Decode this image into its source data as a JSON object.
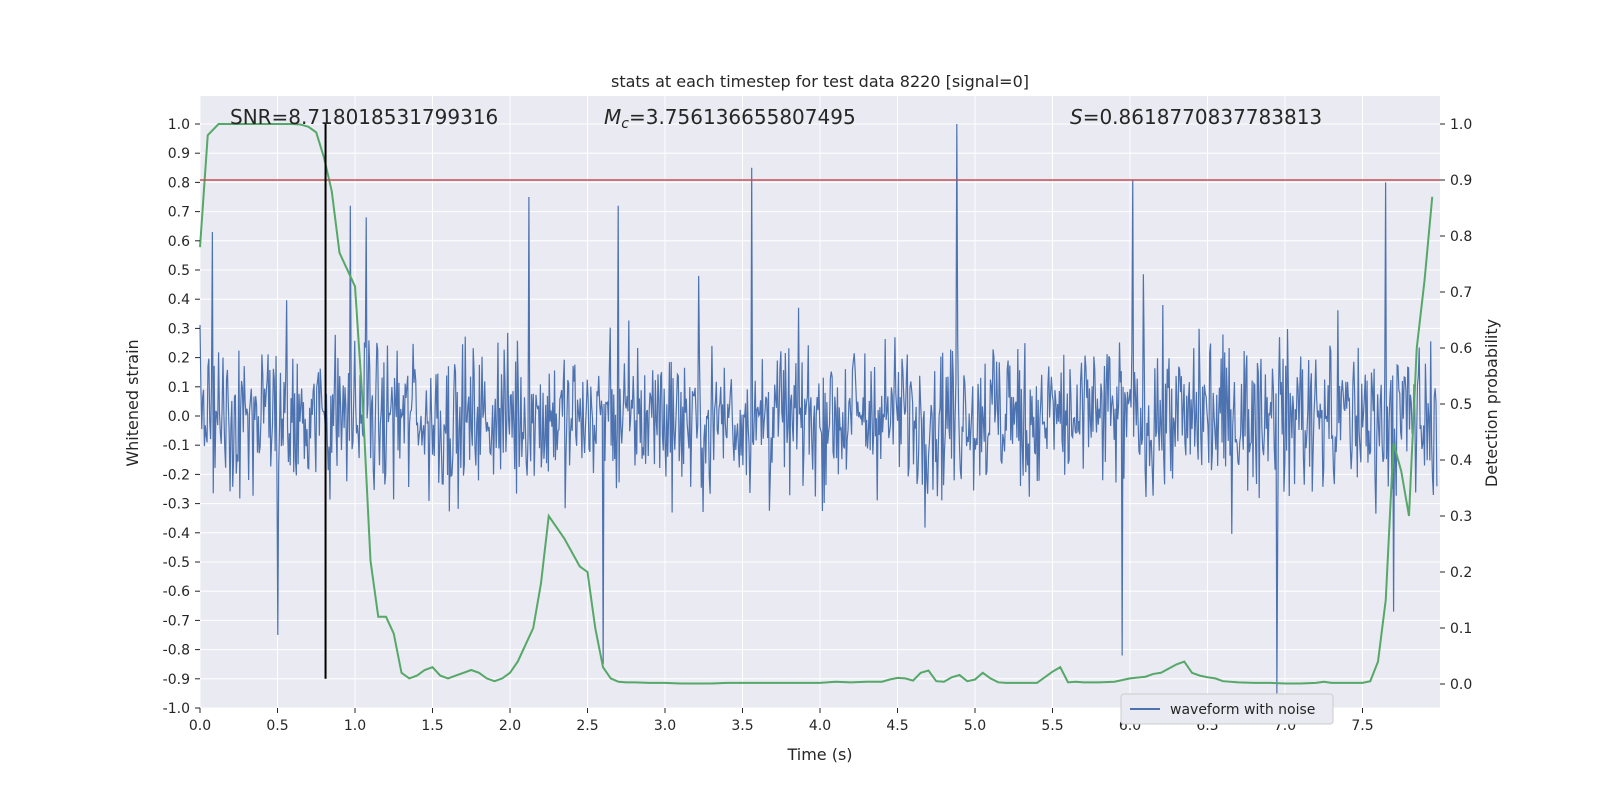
{
  "chart_data": {
    "type": "line",
    "title": "stats at each timestep for test data 8220 [signal=0]",
    "xlabel": "Time (s)",
    "ylabel_left": "Whitened strain",
    "ylabel_right": "Detection probability",
    "xlim": [
      0.0,
      8.0
    ],
    "ylim_left": [
      -1.0,
      1.0
    ],
    "ylim_right": [
      0.0,
      1.0
    ],
    "x_ticks": [
      "0.0",
      "0.5",
      "1.0",
      "1.5",
      "2.0",
      "2.5",
      "3.0",
      "3.5",
      "4.0",
      "4.5",
      "5.0",
      "5.5",
      "6.0",
      "6.5",
      "7.0",
      "7.5"
    ],
    "y_ticks_left": [
      "1.0",
      "0.9",
      "0.8",
      "0.7",
      "0.6",
      "0.5",
      "0.4",
      "0.3",
      "0.2",
      "0.1",
      "0.0",
      "-0.1",
      "-0.2",
      "-0.3",
      "-0.4",
      "-0.5",
      "-0.6",
      "-0.7",
      "-0.8",
      "-0.9",
      "-1.0"
    ],
    "y_ticks_right": [
      "1.0",
      "0.9",
      "0.8",
      "0.7",
      "0.6",
      "0.5",
      "0.4",
      "0.3",
      "0.2",
      "0.1",
      "0.0"
    ],
    "annotations": {
      "snr": "SNR=8.718018531799316",
      "mc_symbol": "M",
      "mc_sub": "c",
      "mc_value": "=3.756136655807495",
      "s_symbol": "S",
      "s_value": "=0.8618770837783813"
    },
    "legend": {
      "position": "lower-right",
      "entries": [
        "waveform with noise"
      ]
    },
    "grid": true,
    "background": "#eaeaf2",
    "colors": {
      "waveform": "#4c72b0",
      "probability": "#55a868",
      "threshold": "#c44e52",
      "marker": "#000000"
    },
    "threshold_right": 0.9,
    "vertical_marker_x": 0.81,
    "waveform": {
      "description_points_range": [
        -1.0,
        1.0
      ],
      "core_amplitude": 0.4,
      "peaks": [
        {
          "x": 0.08,
          "y": 0.63
        },
        {
          "x": 0.5,
          "y": -0.75
        },
        {
          "x": 0.97,
          "y": 0.72
        },
        {
          "x": 1.07,
          "y": 0.68
        },
        {
          "x": 2.12,
          "y": 0.75
        },
        {
          "x": 2.6,
          "y": -0.85
        },
        {
          "x": 2.7,
          "y": 0.72
        },
        {
          "x": 3.56,
          "y": 0.85
        },
        {
          "x": 4.88,
          "y": 1.0
        },
        {
          "x": 6.02,
          "y": 0.81
        },
        {
          "x": 5.95,
          "y": -0.82
        },
        {
          "x": 6.95,
          "y": -0.95
        },
        {
          "x": 7.65,
          "y": 0.8
        },
        {
          "x": 7.7,
          "y": -0.67
        }
      ]
    },
    "series": [
      {
        "name": "",
        "axis": "right",
        "x": [
          0.0,
          0.05,
          0.12,
          0.2,
          0.3,
          0.4,
          0.5,
          0.6,
          0.65,
          0.7,
          0.75,
          0.8,
          0.85,
          0.9,
          0.95,
          1.0,
          1.05,
          1.1,
          1.15,
          1.2,
          1.25,
          1.3,
          1.35,
          1.4,
          1.45,
          1.5,
          1.55,
          1.6,
          1.65,
          1.7,
          1.75,
          1.8,
          1.85,
          1.9,
          1.95,
          2.0,
          2.05,
          2.1,
          2.15,
          2.2,
          2.25,
          2.3,
          2.35,
          2.4,
          2.45,
          2.5,
          2.55,
          2.6,
          2.65,
          2.7,
          2.75,
          2.8,
          2.9,
          3.0,
          3.1,
          3.2,
          3.3,
          3.4,
          3.5,
          3.6,
          3.7,
          3.8,
          3.9,
          4.0,
          4.1,
          4.2,
          4.3,
          4.4,
          4.45,
          4.5,
          4.55,
          4.6,
          4.65,
          4.7,
          4.75,
          4.8,
          4.85,
          4.9,
          4.95,
          5.0,
          5.05,
          5.1,
          5.15,
          5.2,
          5.3,
          5.4,
          5.5,
          5.55,
          5.6,
          5.65,
          5.7,
          5.8,
          5.9,
          6.0,
          6.1,
          6.15,
          6.2,
          6.3,
          6.35,
          6.4,
          6.45,
          6.5,
          6.55,
          6.6,
          6.7,
          6.8,
          6.9,
          7.0,
          7.1,
          7.2,
          7.25,
          7.3,
          7.4,
          7.5,
          7.55,
          7.6,
          7.65,
          7.7,
          7.75,
          7.8,
          7.85,
          7.9,
          7.95
        ],
        "values": [
          0.78,
          0.98,
          1.0,
          1.0,
          1.0,
          1.0,
          1.0,
          1.0,
          0.999,
          0.995,
          0.985,
          0.94,
          0.88,
          0.77,
          0.74,
          0.71,
          0.5,
          0.22,
          0.12,
          0.12,
          0.09,
          0.02,
          0.01,
          0.015,
          0.025,
          0.03,
          0.015,
          0.01,
          0.015,
          0.02,
          0.025,
          0.02,
          0.01,
          0.005,
          0.01,
          0.02,
          0.04,
          0.07,
          0.1,
          0.18,
          0.3,
          0.28,
          0.26,
          0.235,
          0.21,
          0.2,
          0.1,
          0.03,
          0.01,
          0.004,
          0.003,
          0.003,
          0.002,
          0.002,
          0.001,
          0.001,
          0.001,
          0.002,
          0.002,
          0.002,
          0.002,
          0.002,
          0.002,
          0.002,
          0.004,
          0.003,
          0.004,
          0.004,
          0.008,
          0.011,
          0.01,
          0.006,
          0.02,
          0.024,
          0.005,
          0.004,
          0.012,
          0.016,
          0.005,
          0.008,
          0.02,
          0.01,
          0.003,
          0.002,
          0.002,
          0.002,
          0.022,
          0.03,
          0.003,
          0.004,
          0.003,
          0.003,
          0.004,
          0.01,
          0.013,
          0.018,
          0.02,
          0.035,
          0.04,
          0.02,
          0.015,
          0.012,
          0.01,
          0.005,
          0.003,
          0.002,
          0.002,
          0.001,
          0.001,
          0.002,
          0.004,
          0.002,
          0.002,
          0.002,
          0.005,
          0.04,
          0.15,
          0.43,
          0.38,
          0.3,
          0.6,
          0.72,
          0.87
        ]
      }
    ]
  }
}
